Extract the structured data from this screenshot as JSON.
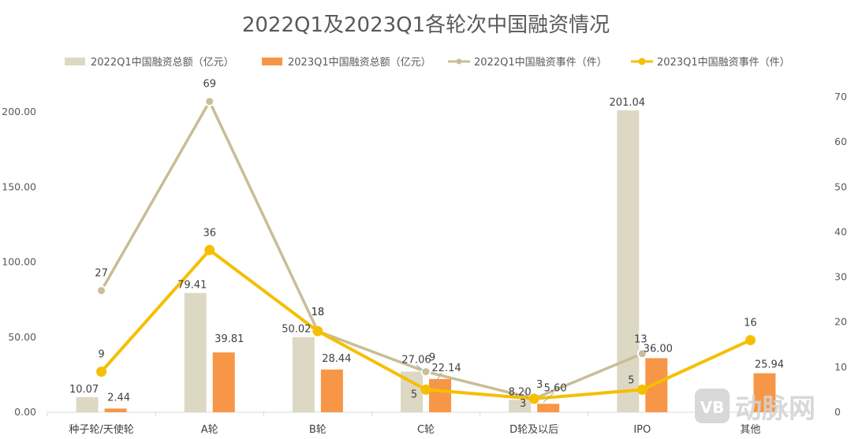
{
  "chart_data": {
    "type": "bar",
    "title": "2022Q1及2023Q1各轮次中国融资情况",
    "categories": [
      "种子轮/天使轮",
      "A轮",
      "B轮",
      "C轮",
      "D轮及以后",
      "IPO",
      "其他"
    ],
    "series": [
      {
        "name": "2022Q1中国融资总额（亿元）",
        "type": "bar",
        "axis": "left",
        "color": "#ddd8c4",
        "values": [
          10.07,
          79.41,
          50.02,
          27.06,
          8.2,
          201.04,
          null
        ],
        "labels": [
          "10.07",
          "79.41",
          "50.02",
          "27.06",
          "8.20",
          "201.04",
          ""
        ]
      },
      {
        "name": "2023Q1中国融资总额（亿元）",
        "type": "bar",
        "axis": "left",
        "color": "#f79646",
        "values": [
          2.44,
          39.81,
          28.44,
          22.14,
          5.6,
          36.0,
          25.94
        ],
        "labels": [
          "2.44",
          "39.81",
          "28.44",
          "22.14",
          "5.60",
          "36.00",
          "25.94"
        ]
      },
      {
        "name": "2022Q1中国融资事件（件）",
        "type": "line",
        "axis": "right",
        "color": "#c9bd97",
        "values": [
          27,
          69,
          18,
          9,
          3,
          13,
          null
        ],
        "labels": [
          "27",
          "69",
          "18",
          "9",
          "3",
          "13",
          ""
        ]
      },
      {
        "name": "2023Q1中国融资事件（件）",
        "type": "line",
        "axis": "right",
        "color": "#f5bf00",
        "values": [
          9,
          36,
          18,
          5,
          3,
          5,
          16
        ],
        "labels": [
          "9",
          "36",
          "18",
          "5",
          "3",
          "5",
          "16"
        ]
      }
    ],
    "y_left": {
      "min": 0,
      "max": 200,
      "ticks": [
        "0.00",
        "50.00",
        "100.00",
        "150.00",
        "200.00"
      ]
    },
    "y_right": {
      "min": 0,
      "max": 70,
      "ticks": [
        "0",
        "10",
        "20",
        "30",
        "40",
        "50",
        "60",
        "70"
      ]
    },
    "legend_position": "top",
    "grid": false
  },
  "watermark": {
    "text": "动脉网",
    "icon": "vb-logo-icon"
  }
}
